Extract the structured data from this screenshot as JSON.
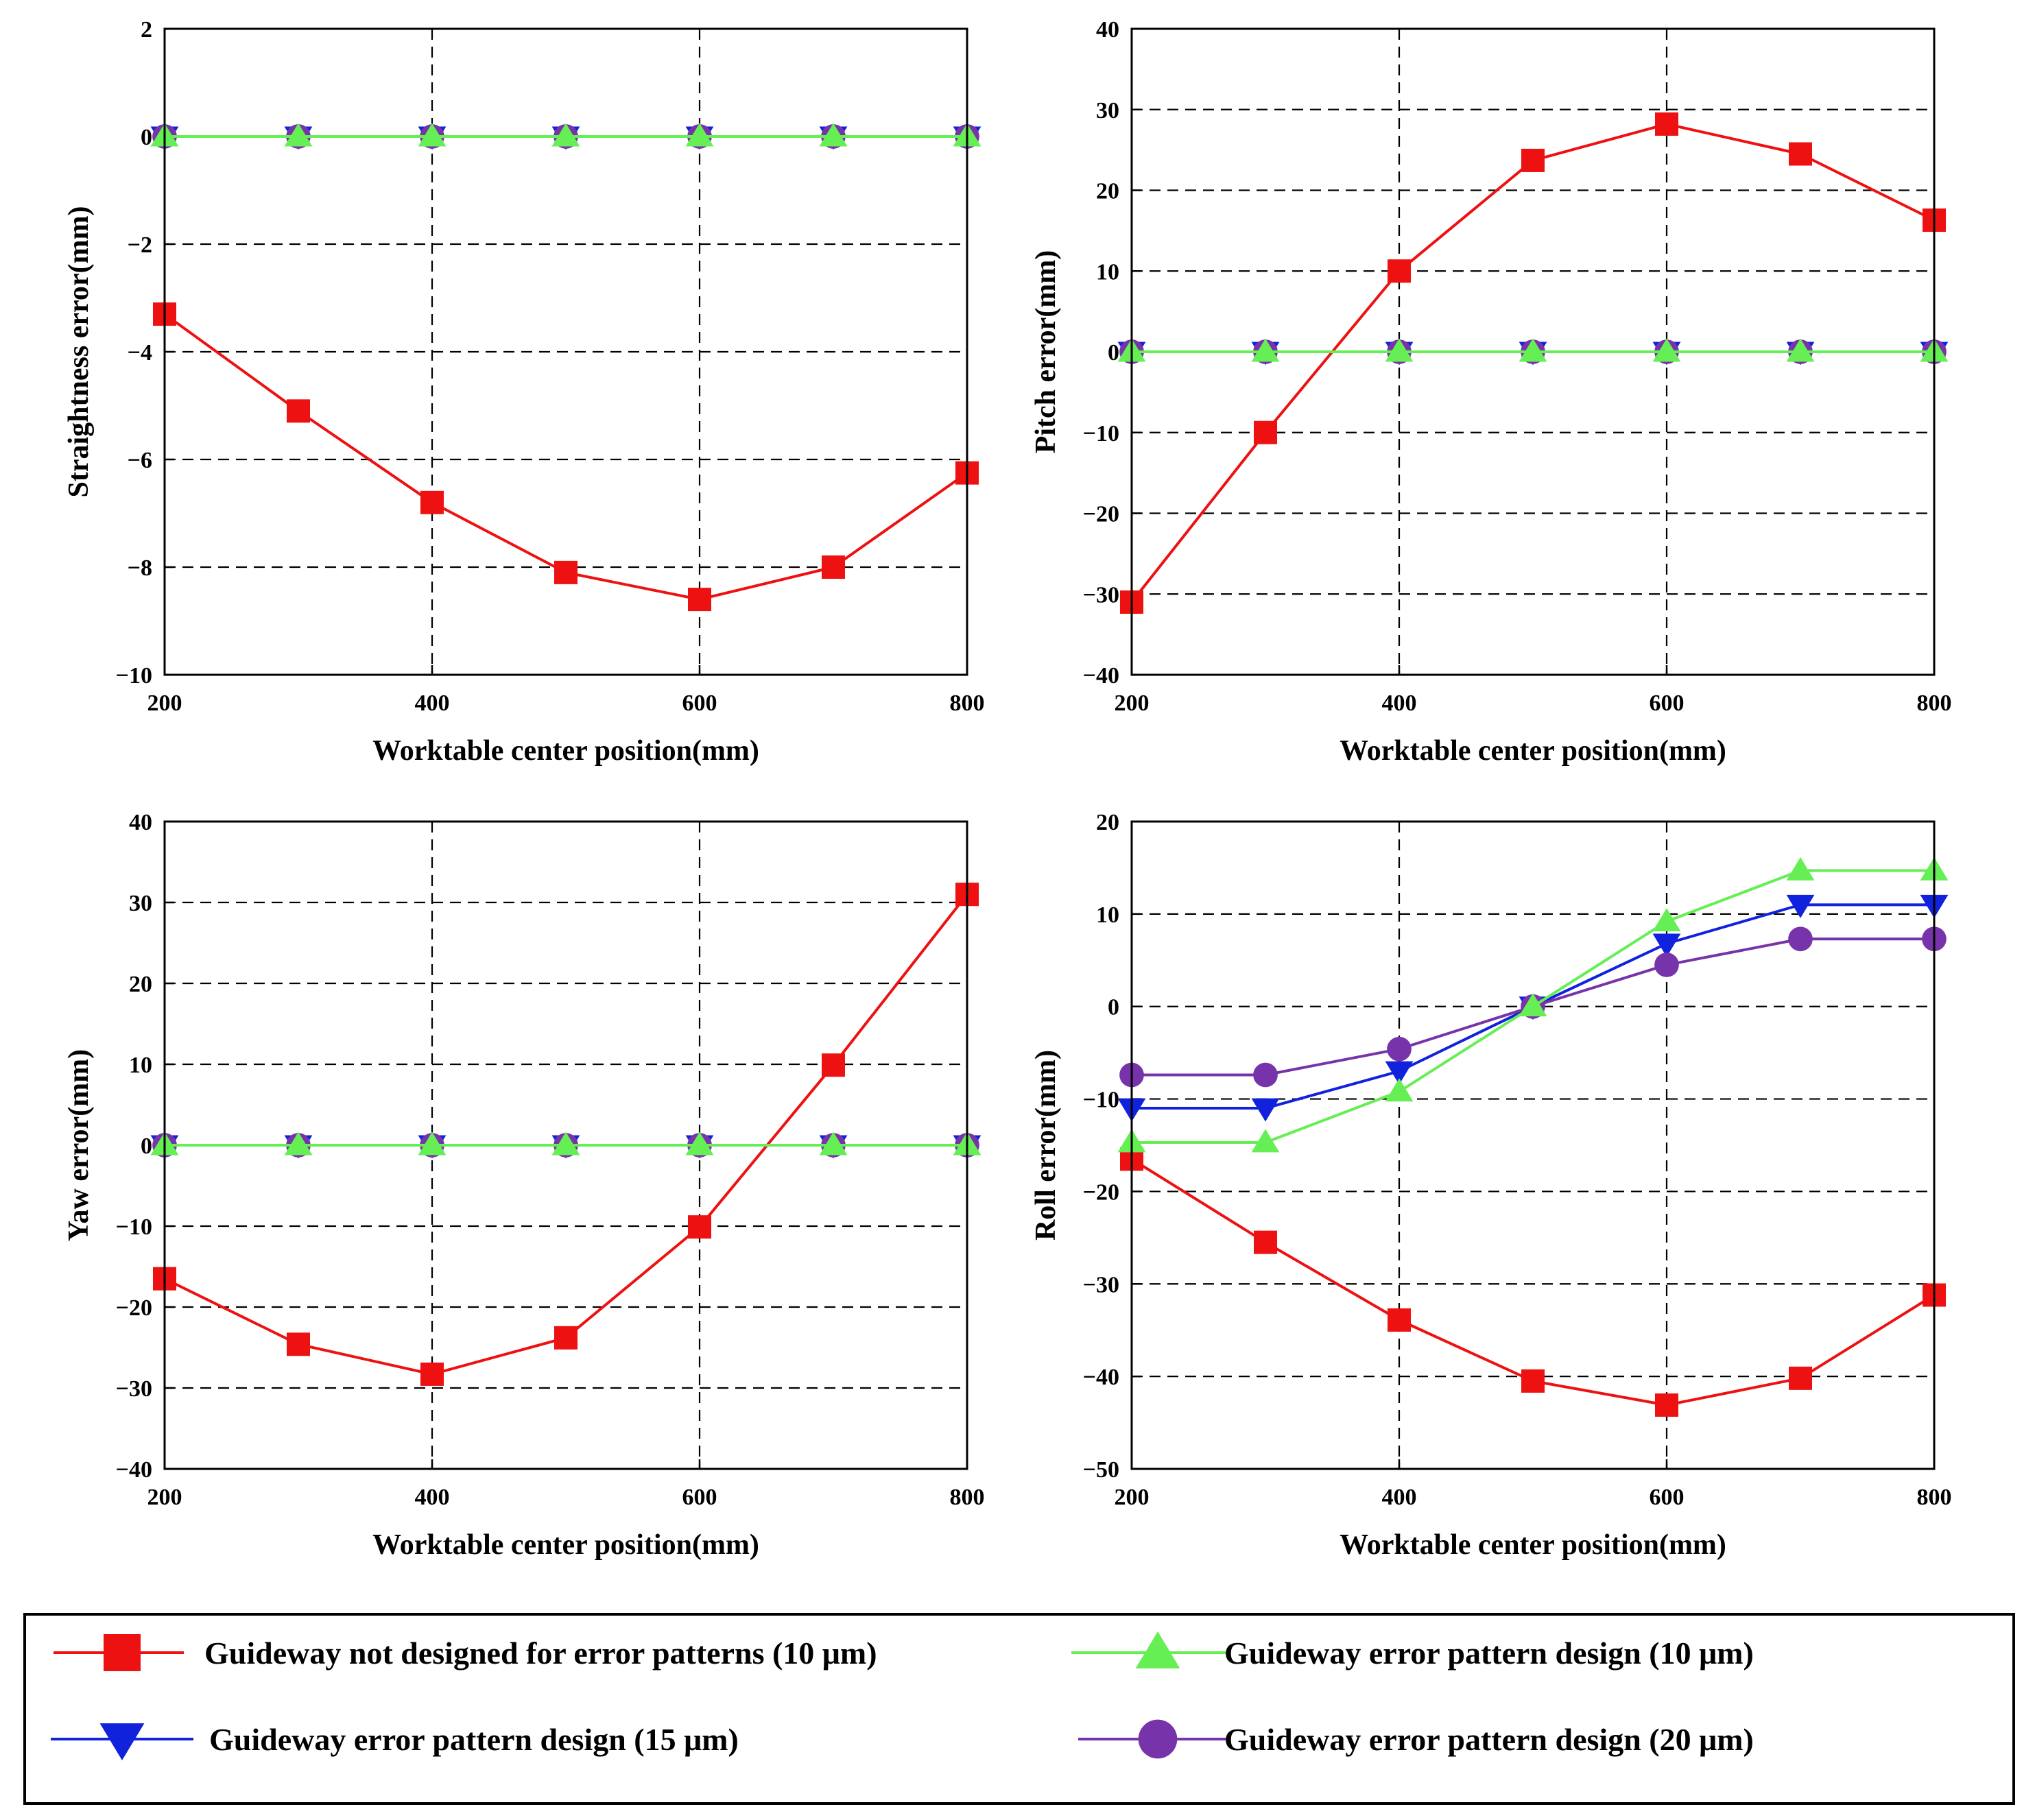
{
  "chart_data": [
    {
      "type": "line",
      "xlabel": "Worktable center position(mm)",
      "ylabel": "Straightness error(mm)",
      "xlim": [
        200,
        800
      ],
      "ylim": [
        -10,
        2
      ],
      "xticks": [
        200,
        400,
        600,
        800
      ],
      "yticks": [
        -10,
        -8,
        -6,
        -4,
        -2,
        0,
        2
      ],
      "xtick_labels": [
        "200",
        "400",
        "600",
        "800"
      ],
      "ytick_labels": [
        "−10",
        "−8",
        "−6",
        "−4",
        "−2",
        "0",
        "2"
      ],
      "grid": true,
      "x": [
        200,
        300,
        400,
        500,
        600,
        700,
        800
      ],
      "series": [
        {
          "name": "Guideway not designed for error patterns (10 μm)",
          "values": [
            -3.3,
            -5.1,
            -6.8,
            -8.1,
            -8.6,
            -8.0,
            -6.25
          ]
        },
        {
          "name": "Guideway error pattern design (15 μm)",
          "values": [
            0,
            0,
            0,
            0,
            0,
            0,
            0
          ]
        },
        {
          "name": "Guideway error pattern design (20 μm)",
          "values": [
            0,
            0,
            0,
            0,
            0,
            0,
            0
          ]
        },
        {
          "name": "Guideway error pattern design (10 μm)",
          "values": [
            0,
            0,
            0,
            0,
            0,
            0,
            0
          ]
        }
      ]
    },
    {
      "type": "line",
      "xlabel": "Worktable center position(mm)",
      "ylabel": "Pitch error(mm)",
      "xlim": [
        200,
        800
      ],
      "ylim": [
        -40,
        40
      ],
      "xticks": [
        200,
        400,
        600,
        800
      ],
      "yticks": [
        -40,
        -30,
        -20,
        -10,
        0,
        10,
        20,
        30,
        40
      ],
      "xtick_labels": [
        "200",
        "400",
        "600",
        "800"
      ],
      "ytick_labels": [
        "−40",
        "−30",
        "−20",
        "−10",
        "0",
        "10",
        "20",
        "30",
        "40"
      ],
      "grid": true,
      "x": [
        200,
        300,
        400,
        500,
        600,
        700,
        800
      ],
      "series": [
        {
          "name": "Guideway not designed for error patterns (10 μm)",
          "values": [
            -31,
            -10,
            10,
            23.7,
            28.2,
            24.5,
            16.3
          ]
        },
        {
          "name": "Guideway error pattern design (15 μm)",
          "values": [
            0,
            0,
            0,
            0,
            0,
            0,
            0
          ]
        },
        {
          "name": "Guideway error pattern design (20 μm)",
          "values": [
            0,
            0,
            0,
            0,
            0,
            0,
            0
          ]
        },
        {
          "name": "Guideway error pattern design (10 μm)",
          "values": [
            0,
            0,
            0,
            0,
            0,
            0,
            0
          ]
        }
      ]
    },
    {
      "type": "line",
      "xlabel": "Worktable center position(mm)",
      "ylabel": "Yaw error(mm)",
      "xlim": [
        200,
        800
      ],
      "ylim": [
        -40,
        40
      ],
      "xticks": [
        200,
        400,
        600,
        800
      ],
      "yticks": [
        -40,
        -30,
        -20,
        -10,
        0,
        10,
        20,
        30,
        40
      ],
      "xtick_labels": [
        "200",
        "400",
        "600",
        "800"
      ],
      "ytick_labels": [
        "−40",
        "−30",
        "−20",
        "−10",
        "0",
        "10",
        "20",
        "30",
        "40"
      ],
      "grid": true,
      "x": [
        200,
        300,
        400,
        500,
        600,
        700,
        800
      ],
      "series": [
        {
          "name": "Guideway not designed for error patterns (10 μm)",
          "values": [
            -16.5,
            -24.6,
            -28.3,
            -23.8,
            -10.1,
            9.9,
            31
          ]
        },
        {
          "name": "Guideway error pattern design (15 μm)",
          "values": [
            0,
            0,
            0,
            0,
            0,
            0,
            0
          ]
        },
        {
          "name": "Guideway error pattern design (20 μm)",
          "values": [
            0,
            0,
            0,
            0,
            0,
            0,
            0
          ]
        },
        {
          "name": "Guideway error pattern design (10 μm)",
          "values": [
            0,
            0,
            0,
            0,
            0,
            0,
            0
          ]
        }
      ]
    },
    {
      "type": "line",
      "xlabel": "Worktable center position(mm)",
      "ylabel": "Roll error(mm)",
      "xlim": [
        200,
        800
      ],
      "ylim": [
        -50,
        20
      ],
      "xticks": [
        200,
        400,
        600,
        800
      ],
      "yticks": [
        -50,
        -40,
        -30,
        -20,
        -10,
        0,
        10,
        20
      ],
      "xtick_labels": [
        "200",
        "400",
        "600",
        "800"
      ],
      "ytick_labels": [
        "−50",
        "−40",
        "−30",
        "−20",
        "−10",
        "0",
        "10",
        "20"
      ],
      "grid": true,
      "x": [
        200,
        300,
        400,
        500,
        600,
        700,
        800
      ],
      "series": [
        {
          "name": "Guideway not designed for error patterns (10 μm)",
          "values": [
            -16.5,
            -25.5,
            -33.9,
            -40.5,
            -43.1,
            -40.2,
            -31.2
          ]
        },
        {
          "name": "Guideway error pattern design (15 μm)",
          "values": [
            -11,
            -11,
            -7,
            0,
            6.8,
            11,
            11
          ]
        },
        {
          "name": "Guideway error pattern design (20 μm)",
          "values": [
            -7.4,
            -7.4,
            -4.6,
            0,
            4.5,
            7.3,
            7.3
          ]
        },
        {
          "name": "Guideway error pattern design (10 μm)",
          "values": [
            -14.7,
            -14.7,
            -9.2,
            0,
            9.2,
            14.7,
            14.7
          ]
        }
      ]
    }
  ],
  "legend": {
    "placement": "bottom",
    "items": [
      {
        "label": "Guideway not designed for error patterns (10 μm)",
        "marker": "square",
        "color": "#ee1111"
      },
      {
        "label": "Guideway error pattern design (10 μm)",
        "marker": "triangle-up",
        "color": "#66ee55"
      },
      {
        "label": "Guideway error pattern design (15 μm)",
        "marker": "triangle-down",
        "color": "#1122dd"
      },
      {
        "label": "Guideway error pattern design (20 μm)",
        "marker": "circle",
        "color": "#7733aa"
      }
    ]
  },
  "styles": {
    "series_colors": [
      "#ee1111",
      "#1122dd",
      "#7733aa",
      "#66ee55"
    ],
    "series_markers": [
      "square",
      "triangle-down",
      "circle",
      "triangle-up"
    ]
  }
}
